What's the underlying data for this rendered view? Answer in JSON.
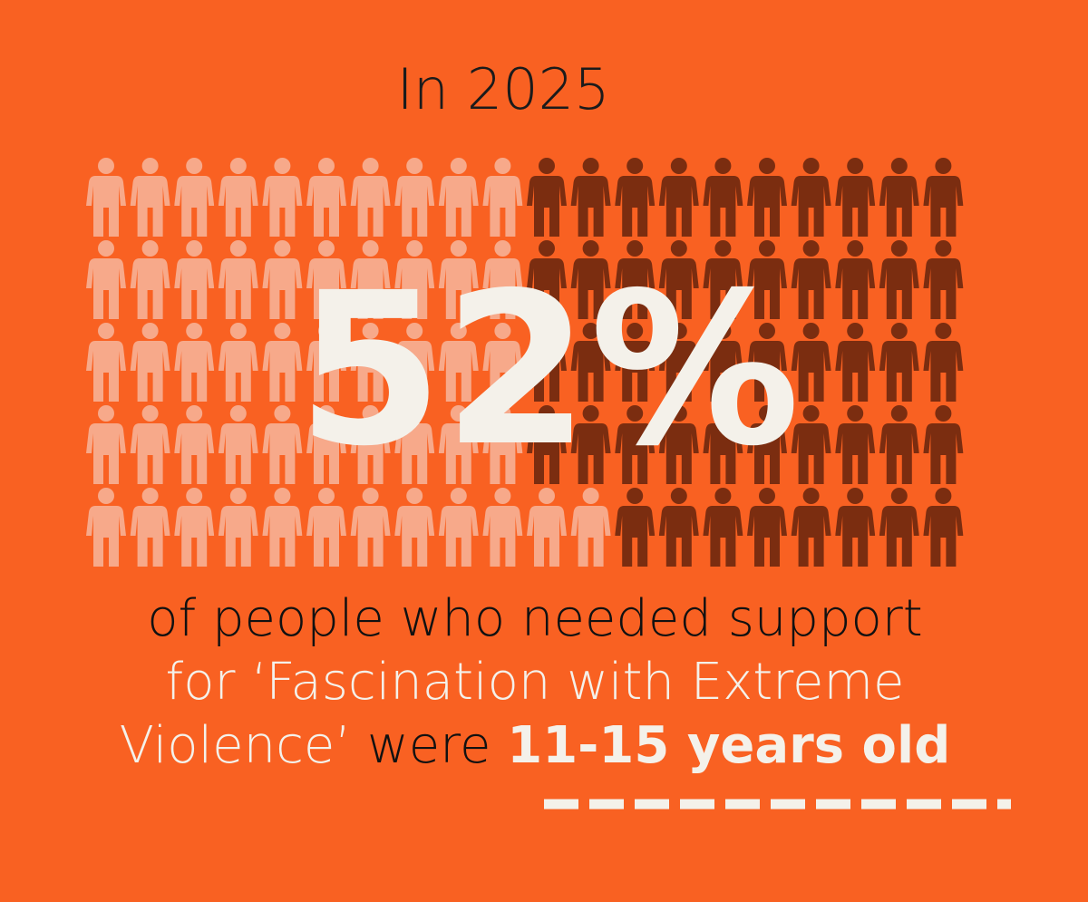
{
  "chart_data": {
    "type": "pictogram",
    "title": "In 2025",
    "value": 52,
    "value_label": "52%",
    "fill_color": "#f7a98a",
    "rest_color": "#7b2d10",
    "caption": [
      [
        {
          "text": "of people who needed support",
          "color": "#111111",
          "bold": false
        }
      ],
      [
        {
          "text": "for ‘Fascination with Extreme",
          "color": "#f4f1ea",
          "bold": false
        }
      ],
      [
        {
          "text": "Violence’",
          "color": "#f4f1ea",
          "bold": false
        },
        {
          "text": " were ",
          "color": "#111111",
          "bold": false
        },
        {
          "text": "11-15 years old",
          "color": "#f4f1ea",
          "bold": true
        }
      ]
    ]
  }
}
